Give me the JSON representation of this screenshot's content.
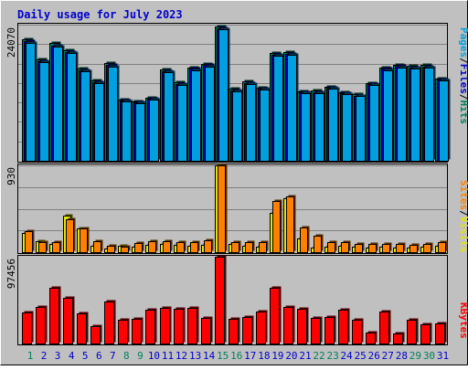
{
  "title": "Daily usage for July 2023",
  "colors": {
    "frame_bg": "#C0C0C0",
    "panel_border": "#E6E6E6",
    "grid": "#808080",
    "title": "#0000CC",
    "hits": "#00805C",
    "files": "#0000CC",
    "pages": "#00A0E0",
    "visits": "#E6E600",
    "sites": "#FF8000",
    "kbytes": "#FF0000",
    "weekend_day": "#00805C",
    "weekday_day": "#0000CC"
  },
  "legend_top": {
    "separator": "/",
    "items": [
      {
        "label": "Pages",
        "color": "#00A0E0"
      },
      {
        "label": "Files",
        "color": "#0000CC"
      },
      {
        "label": "Hits",
        "color": "#00805C"
      }
    ]
  },
  "legend_mid": {
    "separator": "/",
    "items": [
      {
        "label": "Sites",
        "color": "#FF8000"
      },
      {
        "label": "Visits",
        "color": "#E6E600"
      }
    ]
  },
  "legend_bot": {
    "items": [
      {
        "label": "KBytes",
        "color": "#FF0000"
      }
    ]
  },
  "chart_data": [
    {
      "type": "bar",
      "panel": "hits",
      "ymax_label": "24070",
      "ylim": [
        0,
        24070
      ],
      "categories": [
        "1",
        "2",
        "3",
        "4",
        "5",
        "6",
        "7",
        "8",
        "9",
        "10",
        "11",
        "12",
        "13",
        "14",
        "15",
        "16",
        "17",
        "18",
        "19",
        "20",
        "21",
        "22",
        "23",
        "24",
        "25",
        "26",
        "27",
        "28",
        "29",
        "30",
        "31"
      ],
      "series": [
        {
          "name": "Hits",
          "values": [
            21470,
            17900,
            20760,
            19490,
            16290,
            14180,
            17230,
            10870,
            10480,
            11150,
            16110,
            13860,
            16550,
            17190,
            23700,
            12700,
            14030,
            12930,
            18990,
            19200,
            12350,
            12390,
            13160,
            12130,
            11780,
            13730,
            16520,
            17030,
            16780,
            16900,
            14550
          ]
        },
        {
          "name": "Files",
          "values": [
            21100,
            17600,
            20400,
            19200,
            16000,
            13900,
            16900,
            10650,
            10300,
            10950,
            15800,
            13600,
            16250,
            16900,
            23400,
            12450,
            13750,
            12700,
            18700,
            18900,
            12100,
            12150,
            12900,
            11900,
            11550,
            13500,
            16250,
            16750,
            16500,
            16600,
            14300
          ]
        },
        {
          "name": "Pages",
          "values": [
            20900,
            17400,
            20200,
            19000,
            15800,
            13700,
            16700,
            10500,
            10150,
            10800,
            15600,
            13400,
            16050,
            16700,
            23200,
            12300,
            13550,
            12550,
            18500,
            18700,
            11950,
            12000,
            12750,
            11750,
            11400,
            13350,
            16050,
            16550,
            16300,
            16400,
            14150
          ]
        }
      ]
    },
    {
      "type": "bar",
      "panel": "visits",
      "ymax_label": "930",
      "ylim": [
        0,
        930
      ],
      "categories": [
        "1",
        "2",
        "3",
        "4",
        "5",
        "6",
        "7",
        "8",
        "9",
        "10",
        "11",
        "12",
        "13",
        "14",
        "15",
        "16",
        "17",
        "18",
        "19",
        "20",
        "21",
        "22",
        "23",
        "24",
        "25",
        "26",
        "27",
        "28",
        "29",
        "30",
        "31"
      ],
      "series": [
        {
          "name": "Visits",
          "values": [
            210,
            120,
            90,
            390,
            250,
            70,
            40,
            70,
            60,
            80,
            90,
            80,
            70,
            80,
            930,
            90,
            70,
            60,
            420,
            580,
            150,
            50,
            60,
            70,
            60,
            50,
            60,
            50,
            50,
            60,
            70
          ]
        },
        {
          "name": "Sites",
          "values": [
            230,
            110,
            110,
            350,
            250,
            120,
            70,
            60,
            100,
            120,
            120,
            110,
            110,
            130,
            930,
            110,
            110,
            110,
            550,
            600,
            260,
            180,
            110,
            110,
            90,
            90,
            90,
            90,
            80,
            90,
            110
          ]
        }
      ]
    },
    {
      "type": "bar",
      "panel": "kbytes",
      "ymax_label": "97456",
      "ylim": [
        0,
        97456
      ],
      "categories": [
        "1",
        "2",
        "3",
        "4",
        "5",
        "6",
        "7",
        "8",
        "9",
        "10",
        "11",
        "12",
        "13",
        "14",
        "15",
        "16",
        "17",
        "18",
        "19",
        "20",
        "21",
        "22",
        "23",
        "24",
        "25",
        "26",
        "27",
        "28",
        "29",
        "30",
        "31"
      ],
      "series": [
        {
          "name": "KBytes",
          "values": [
            34900,
            40600,
            63000,
            51500,
            34200,
            19200,
            47300,
            26600,
            27500,
            38400,
            40400,
            39400,
            39700,
            28300,
            97456,
            28000,
            29500,
            35600,
            62300,
            41200,
            38700,
            28600,
            29600,
            38400,
            26200,
            11800,
            35900,
            11700,
            26400,
            22000,
            22300
          ]
        }
      ]
    }
  ],
  "day_labels": [
    {
      "text": "1",
      "weekend": true
    },
    {
      "text": "2",
      "weekend": false
    },
    {
      "text": "3",
      "weekend": false
    },
    {
      "text": "4",
      "weekend": false
    },
    {
      "text": "5",
      "weekend": false
    },
    {
      "text": "6",
      "weekend": false
    },
    {
      "text": "7",
      "weekend": false
    },
    {
      "text": "8",
      "weekend": true
    },
    {
      "text": "9",
      "weekend": true
    },
    {
      "text": "10",
      "weekend": false
    },
    {
      "text": "11",
      "weekend": false
    },
    {
      "text": "12",
      "weekend": false
    },
    {
      "text": "13",
      "weekend": false
    },
    {
      "text": "14",
      "weekend": false
    },
    {
      "text": "15",
      "weekend": true
    },
    {
      "text": "16",
      "weekend": true
    },
    {
      "text": "17",
      "weekend": false
    },
    {
      "text": "18",
      "weekend": false
    },
    {
      "text": "19",
      "weekend": false
    },
    {
      "text": "20",
      "weekend": false
    },
    {
      "text": "21",
      "weekend": false
    },
    {
      "text": "22",
      "weekend": true
    },
    {
      "text": "23",
      "weekend": true
    },
    {
      "text": "24",
      "weekend": false
    },
    {
      "text": "25",
      "weekend": false
    },
    {
      "text": "26",
      "weekend": false
    },
    {
      "text": "27",
      "weekend": false
    },
    {
      "text": "28",
      "weekend": false
    },
    {
      "text": "29",
      "weekend": true
    },
    {
      "text": "30",
      "weekend": true
    },
    {
      "text": "31",
      "weekend": false
    }
  ]
}
